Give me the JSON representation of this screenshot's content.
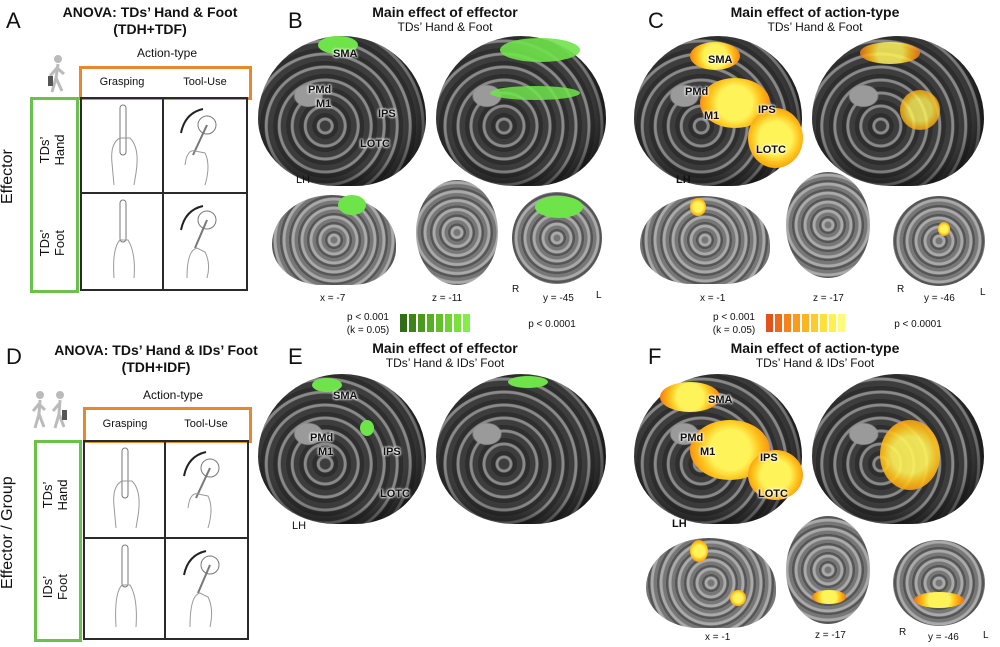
{
  "panel_labels": [
    "A",
    "B",
    "C",
    "D",
    "E",
    "F"
  ],
  "panelA": {
    "title_line1": "ANOVA: TDs’ Hand & Foot",
    "title_line2": "(TDH+TDF)",
    "col_axis": "Action-type",
    "col_headers": [
      "Grasping",
      "Tool-Use"
    ],
    "row_axis": "Effector",
    "row_labels": [
      "TDs’\nHand",
      "TDs’\nFoot"
    ]
  },
  "panelB": {
    "title": "Main effect of effector",
    "subtitle": "TDs’ Hand & Foot",
    "roi": [
      "SMA",
      "PMd",
      "M1",
      "IPS",
      "LOTC"
    ],
    "hemi": "LH",
    "coords": [
      "x = -7",
      "z = -11",
      "y = -45"
    ],
    "orient": [
      "R",
      "L"
    ],
    "pbar_left_1": "p < 0.001",
    "pbar_left_2": "(k = 0.05)",
    "pbar_right": "p < 0.0001",
    "colors": [
      "#2f6e14",
      "#3d8418",
      "#4a9a1f",
      "#56ad26",
      "#62c02c",
      "#6ed334",
      "#78e23c",
      "#82ee46"
    ]
  },
  "panelC": {
    "title": "Main effect of action-type",
    "subtitle": "TDs’ Hand & Foot",
    "roi": [
      "SMA",
      "PMd",
      "M1",
      "IPS",
      "LOTC"
    ],
    "hemi": "LH",
    "coords": [
      "x = -1",
      "z = -17",
      "y = -46"
    ],
    "orient": [
      "R",
      "L"
    ],
    "pbar_left_1": "p < 0.001",
    "pbar_left_2": "(k = 0.05)",
    "pbar_right": "p < 0.0001",
    "colors": [
      "#e4521b",
      "#ec6a1a",
      "#f3831a",
      "#f89c1c",
      "#fbb521",
      "#fdcb2a",
      "#fee038",
      "#fff24e",
      "#fffb7a"
    ]
  },
  "panelD": {
    "title_line1": "ANOVA: TDs’ Hand & IDs’ Foot",
    "title_line2": "(TDH+IDF)",
    "col_axis": "Action-type",
    "col_headers": [
      "Grasping",
      "Tool-Use"
    ],
    "row_axis": "Effector / Group",
    "row_labels": [
      "TDs’\nHand",
      "IDs’\nFoot"
    ]
  },
  "panelE": {
    "title": "Main effect of effector",
    "subtitle": "TDs’ Hand & IDs’ Foot",
    "roi": [
      "SMA",
      "PMd",
      "M1",
      "IPS",
      "LOTC"
    ],
    "hemi": "LH"
  },
  "panelF": {
    "title": "Main effect of action-type",
    "subtitle": "TDs’ Hand & IDs’ Foot",
    "roi": [
      "SMA",
      "PMd",
      "M1",
      "IPS",
      "LOTC"
    ],
    "hemi": "LH",
    "coords": [
      "x = -1",
      "z = -17",
      "y = -46"
    ],
    "orient": [
      "R",
      "L"
    ]
  }
}
